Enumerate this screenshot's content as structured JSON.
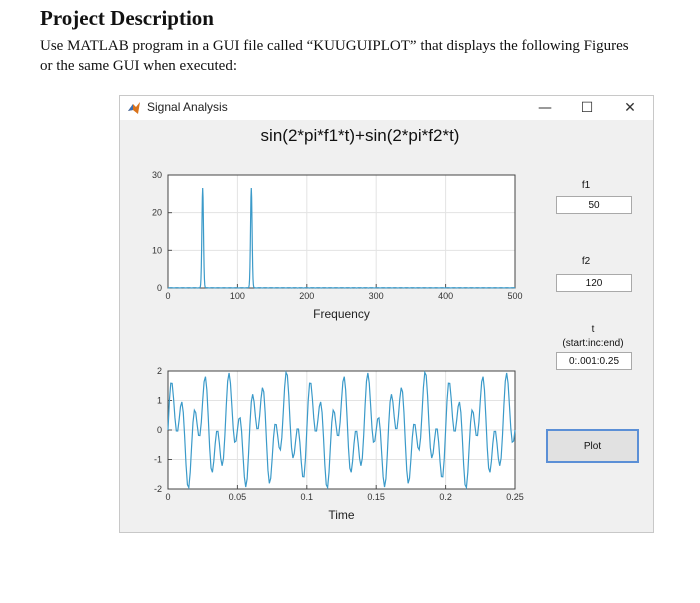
{
  "document": {
    "heading": "Project Description",
    "text": "Use MATLAB program in a GUI file called “KUUGUIPLOT” that displays the following Figures or the same GUI when executed:"
  },
  "window": {
    "title": "Signal Analysis",
    "minimize_glyph": "—",
    "maximize_glyph": "☐",
    "close_glyph": "✕",
    "plot_title": "sin(2*pi*f1*t)+sin(2*pi*f2*t)"
  },
  "controls": {
    "f1_label": "f1",
    "f1_value": "50",
    "f2_label": "f2",
    "f2_value": "120",
    "t_label": "t",
    "t_hint": "(start:inc:end)",
    "t_value": "0:.001:0.25",
    "plot_button": "Plot"
  },
  "icons": {
    "app": "matlab-icon"
  },
  "colors": {
    "line": "#3b9ac9",
    "axes_bg": "#ffffff",
    "window_bg": "#f0f0f0",
    "button_border": "#5b8fd6"
  },
  "chart_data": [
    {
      "type": "line",
      "title": "",
      "xlabel": "Frequency",
      "ylabel": "",
      "xlim": [
        0,
        500
      ],
      "ylim": [
        0,
        30
      ],
      "xticks": [
        0,
        100,
        200,
        300,
        400,
        500
      ],
      "yticks": [
        0,
        10,
        20,
        30
      ],
      "grid": true,
      "peaks": [
        {
          "x": 50,
          "y": 26.5
        },
        {
          "x": 120,
          "y": 26.5
        }
      ]
    },
    {
      "type": "line",
      "title": "",
      "xlabel": "Time",
      "ylabel": "",
      "xlim": [
        0,
        0.25
      ],
      "ylim": [
        -2,
        2
      ],
      "xticks": [
        "0",
        "0.05",
        "0.1",
        "0.15",
        "0.2",
        "0.25"
      ],
      "yticks": [
        -2,
        -1,
        0,
        1,
        2
      ],
      "grid": true,
      "function": "sin(2*pi*50*t)+sin(2*pi*120*t)",
      "t_step": 0.001
    }
  ]
}
